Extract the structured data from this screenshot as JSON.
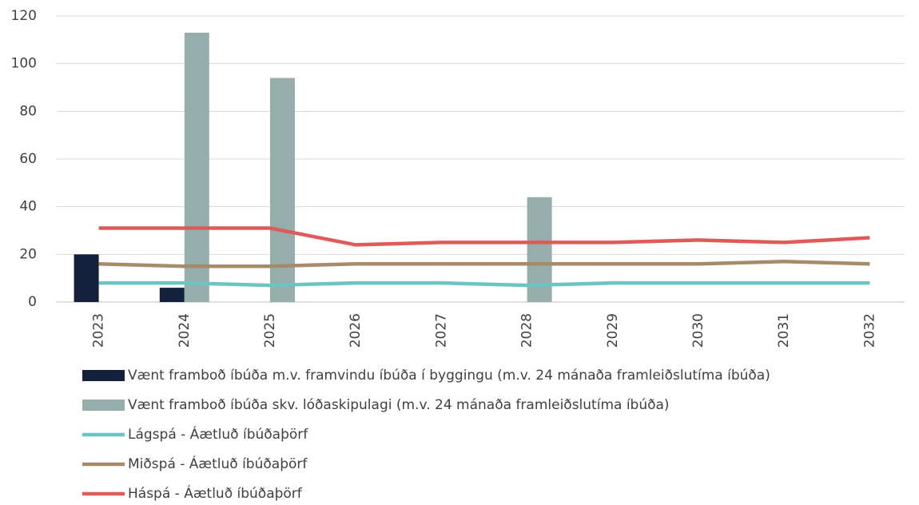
{
  "chart_data": {
    "type": "bar-line",
    "categories": [
      "2023",
      "2024",
      "2025",
      "2026",
      "2027",
      "2028",
      "2029",
      "2030",
      "2031",
      "2032"
    ],
    "series": [
      {
        "name": "Vænt framboð íbúða m.v. framvindu íbúða í byggingu (m.v. 24 mánaða framleiðslutíma íbúða)",
        "type": "bar",
        "color": "#14213d",
        "values": [
          20,
          6,
          null,
          null,
          null,
          null,
          null,
          null,
          null,
          null
        ]
      },
      {
        "name": "Vænt framboð íbúða skv. lóðaskipulagi (m.v. 24 mánaða framleiðslutíma íbúða)",
        "type": "bar",
        "color": "#95aeab",
        "values": [
          null,
          113,
          94,
          null,
          null,
          44,
          null,
          null,
          null,
          null
        ]
      },
      {
        "name": "Lágspá - Áætluð íbúðaþörf",
        "type": "line",
        "color": "#6cc5c4",
        "values": [
          8,
          8,
          7,
          8,
          8,
          7,
          8,
          8,
          8,
          8
        ]
      },
      {
        "name": "Miðspá - Áætluð íbúðaþörf",
        "type": "line",
        "color": "#a68b6a",
        "values": [
          16,
          15,
          15,
          16,
          16,
          16,
          16,
          16,
          17,
          16
        ]
      },
      {
        "name": "Háspá - Áætluð íbúðaþörf",
        "type": "line",
        "color": "#e05a5a",
        "values": [
          31,
          31,
          31,
          24,
          25,
          25,
          25,
          26,
          25,
          27
        ]
      }
    ],
    "ylim": [
      0,
      120
    ],
    "yticks": [
      0,
      20,
      40,
      60,
      80,
      100,
      120
    ],
    "grid": true,
    "legend": "bottom"
  }
}
